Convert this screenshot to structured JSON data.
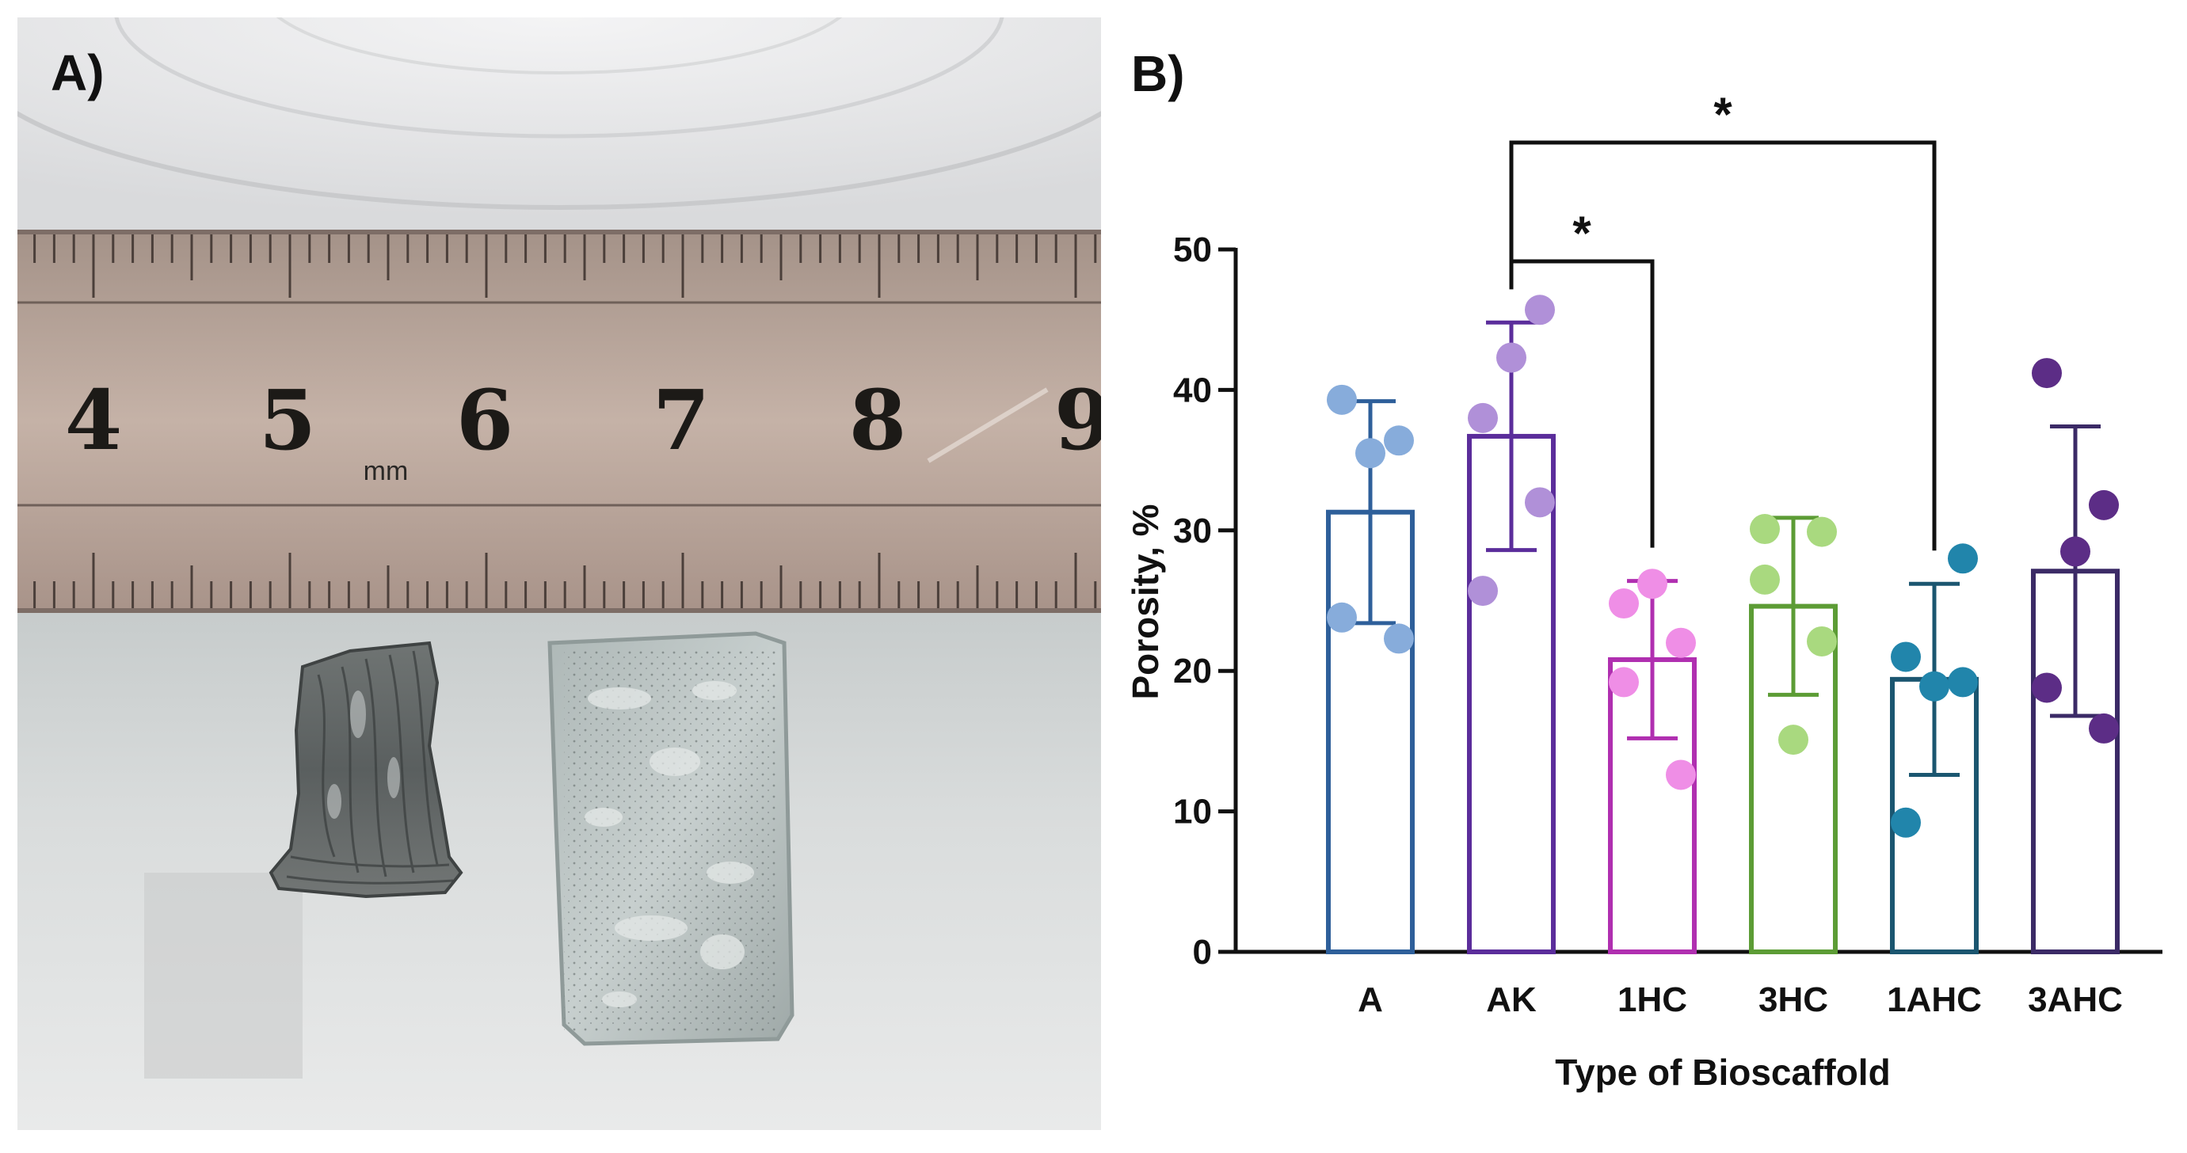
{
  "panel_a": {
    "label": "A)",
    "ruler": {
      "numbers": [
        "4",
        "5",
        "6",
        "7",
        "8",
        "9"
      ],
      "unit": "mm"
    }
  },
  "panel_b": {
    "label": "B)"
  },
  "chart_data": {
    "type": "bar",
    "title": "",
    "xlabel": "Type of Bioscaffold",
    "ylabel": "Porosity, %",
    "ylim": [
      0,
      50
    ],
    "yticks": [
      "0",
      "10",
      "20",
      "30",
      "40",
      "50"
    ],
    "categories": [
      "A",
      "AK",
      "1HC",
      "3HC",
      "1AHC",
      "3AHC"
    ],
    "means": [
      31.3,
      36.7,
      20.8,
      24.6,
      19.4,
      27.1
    ],
    "sd": [
      7.9,
      8.1,
      5.6,
      6.3,
      6.8,
      10.3
    ],
    "points": [
      [
        39.3,
        36.4,
        35.5,
        23.8,
        22.3
      ],
      [
        45.7,
        42.3,
        38.0,
        32.0,
        25.7
      ],
      [
        26.2,
        24.8,
        22.0,
        19.2,
        12.6
      ],
      [
        30.1,
        29.9,
        26.5,
        22.1,
        15.1
      ],
      [
        28.0,
        21.0,
        19.2,
        18.9,
        9.2
      ],
      [
        41.2,
        31.8,
        28.5,
        18.8,
        15.9
      ]
    ],
    "bar_colors": [
      "#2e5f9a",
      "#5b2d9b",
      "#b02fb0",
      "#5c9c35",
      "#1b5670",
      "#3b2a66"
    ],
    "point_colors": [
      "#87acdb",
      "#b090d8",
      "#ef8ee6",
      "#a9d97f",
      "#2185ab",
      "#5c2d86"
    ],
    "significance": [
      {
        "from": "AK",
        "to": "1HC",
        "label": "*"
      },
      {
        "from": "AK",
        "to": "1AHC",
        "label": "*"
      }
    ],
    "grid": false,
    "legend": "none"
  }
}
